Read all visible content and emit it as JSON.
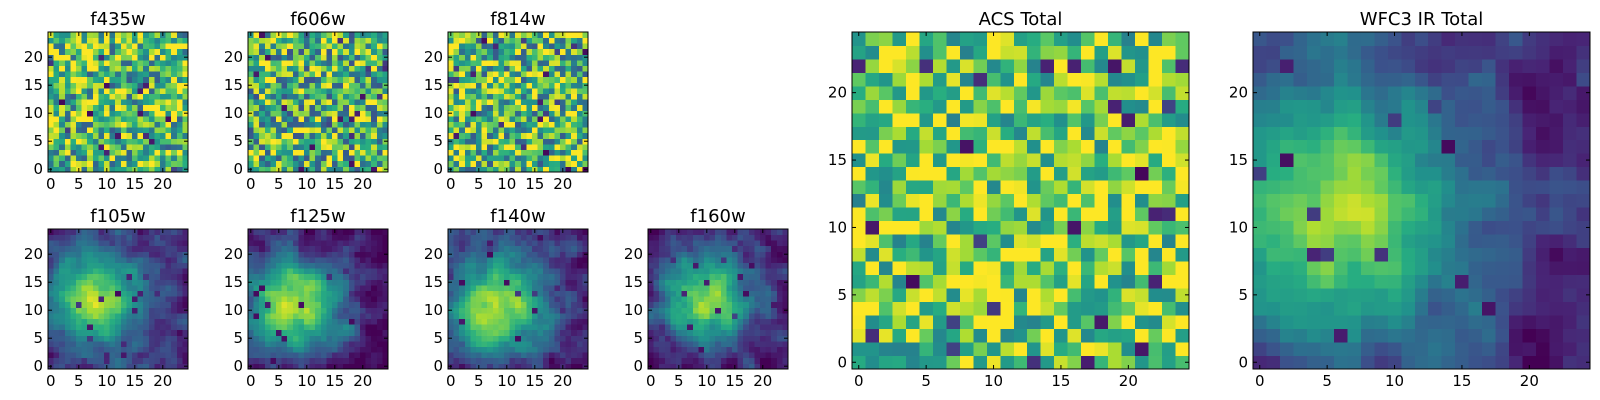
{
  "figure": {
    "description_free": true
  },
  "chart_data": [
    {
      "id": "f435w",
      "type": "heatmap",
      "title": "f435w",
      "grid_size": [
        25,
        25
      ],
      "xlim": [
        -0.5,
        24.5
      ],
      "ylim": [
        -0.5,
        24.5
      ],
      "xticks": [
        0,
        5,
        10,
        15,
        20
      ],
      "yticks": [
        0,
        5,
        10,
        15,
        20
      ],
      "colormap": "viridis",
      "pattern": "noise",
      "seed": 11,
      "floor": 0.48,
      "contrast": 0.9
    },
    {
      "id": "f606w",
      "type": "heatmap",
      "title": "f606w",
      "grid_size": [
        25,
        25
      ],
      "xlim": [
        -0.5,
        24.5
      ],
      "ylim": [
        -0.5,
        24.5
      ],
      "xticks": [
        0,
        5,
        10,
        15,
        20
      ],
      "yticks": [
        0,
        5,
        10,
        15,
        20
      ],
      "colormap": "viridis",
      "pattern": "noise",
      "seed": 23,
      "floor": 0.45,
      "contrast": 0.95
    },
    {
      "id": "f814w",
      "type": "heatmap",
      "title": "f814w",
      "grid_size": [
        25,
        25
      ],
      "xlim": [
        -0.5,
        24.5
      ],
      "ylim": [
        -0.5,
        24.5
      ],
      "xticks": [
        0,
        5,
        10,
        15,
        20
      ],
      "yticks": [
        0,
        5,
        10,
        15,
        20
      ],
      "colormap": "viridis",
      "pattern": "noise",
      "seed": 37,
      "floor": 0.47,
      "contrast": 0.92
    },
    {
      "id": "f105w",
      "type": "heatmap",
      "title": "f105w",
      "grid_size": [
        25,
        25
      ],
      "xlim": [
        -0.5,
        24.5
      ],
      "ylim": [
        -0.5,
        24.5
      ],
      "xticks": [
        0,
        5,
        10,
        15,
        20
      ],
      "yticks": [
        0,
        5,
        10,
        15,
        20
      ],
      "colormap": "viridis",
      "pattern": "blob",
      "seed": 41,
      "blob_center": [
        8,
        12
      ],
      "blob_sigma": 6,
      "floor": 0.4,
      "contrast": 0.9
    },
    {
      "id": "f125w",
      "type": "heatmap",
      "title": "f125w",
      "grid_size": [
        25,
        25
      ],
      "xlim": [
        -0.5,
        24.5
      ],
      "ylim": [
        -0.5,
        24.5
      ],
      "xticks": [
        0,
        5,
        10,
        15,
        20
      ],
      "yticks": [
        0,
        5,
        10,
        15,
        20
      ],
      "colormap": "viridis",
      "pattern": "blob",
      "seed": 53,
      "blob_center": [
        8,
        11
      ],
      "blob_sigma": 6,
      "floor": 0.38,
      "contrast": 0.95
    },
    {
      "id": "f140w",
      "type": "heatmap",
      "title": "f140w",
      "grid_size": [
        25,
        25
      ],
      "xlim": [
        -0.5,
        24.5
      ],
      "ylim": [
        -0.5,
        24.5
      ],
      "xticks": [
        0,
        5,
        10,
        15,
        20
      ],
      "yticks": [
        0,
        5,
        10,
        15,
        20
      ],
      "colormap": "viridis",
      "pattern": "blob",
      "seed": 67,
      "blob_center": [
        8,
        11
      ],
      "blob_sigma": 6.5,
      "floor": 0.4,
      "contrast": 0.92
    },
    {
      "id": "f160w",
      "type": "heatmap",
      "title": "f160w",
      "grid_size": [
        25,
        25
      ],
      "xlim": [
        -0.5,
        24.5
      ],
      "ylim": [
        -0.5,
        24.5
      ],
      "xticks": [
        0,
        5,
        10,
        15,
        20
      ],
      "yticks": [
        0,
        5,
        10,
        15,
        20
      ],
      "colormap": "viridis",
      "pattern": "blob",
      "seed": 79,
      "blob_center": [
        10,
        12
      ],
      "blob_sigma": 6,
      "floor": 0.36,
      "contrast": 0.95
    },
    {
      "id": "acs_total",
      "type": "heatmap",
      "title": "ACS Total",
      "grid_size": [
        25,
        25
      ],
      "xlim": [
        -0.5,
        24.5
      ],
      "ylim": [
        -0.5,
        24.5
      ],
      "xticks": [
        0,
        5,
        10,
        15,
        20
      ],
      "yticks": [
        0,
        5,
        10,
        15,
        20
      ],
      "colormap": "viridis",
      "pattern": "noise",
      "seed": 97,
      "floor": 0.55,
      "contrast": 0.75
    },
    {
      "id": "wfc3_ir_total",
      "type": "heatmap",
      "title": "WFC3 IR Total",
      "grid_size": [
        25,
        25
      ],
      "xlim": [
        -0.5,
        24.5
      ],
      "ylim": [
        -0.5,
        24.5
      ],
      "xticks": [
        0,
        5,
        10,
        15,
        20
      ],
      "yticks": [
        0,
        5,
        10,
        15,
        20
      ],
      "colormap": "viridis",
      "pattern": "blob",
      "seed": 131,
      "blob_center": [
        6,
        11
      ],
      "blob_sigma": 7,
      "floor": 0.38,
      "contrast": 0.85
    }
  ]
}
